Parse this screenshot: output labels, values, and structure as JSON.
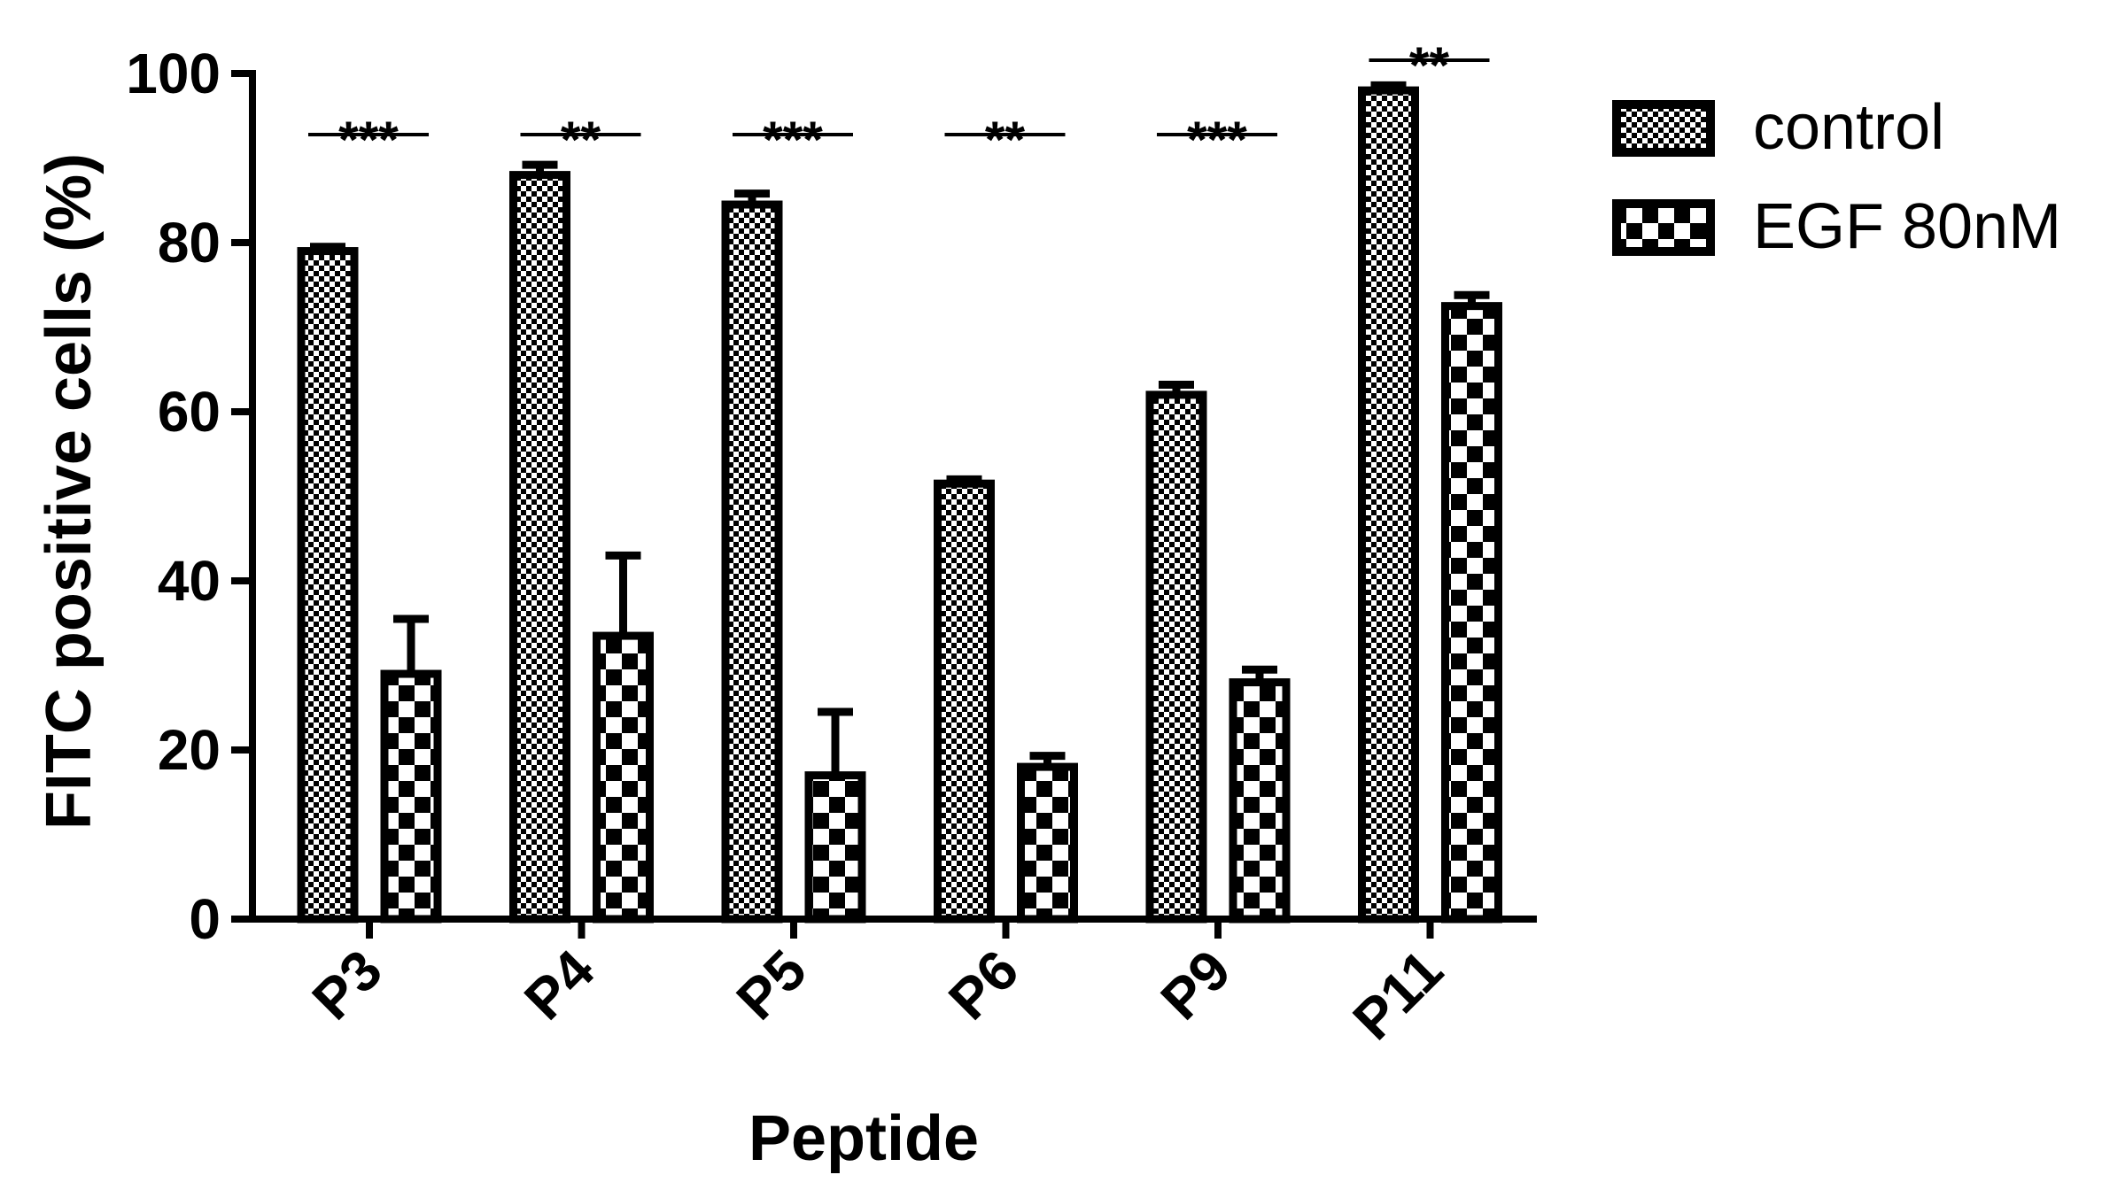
{
  "chart_data": {
    "type": "bar",
    "xlabel": "Peptide",
    "ylabel": "FITC positive cells (%)",
    "ylim": [
      0,
      100
    ],
    "yticks": [
      0,
      20,
      40,
      60,
      80,
      100
    ],
    "categories": [
      "P3",
      "P4",
      "P5",
      "P6",
      "P9",
      "P11"
    ],
    "series": [
      {
        "name": "control",
        "pattern": "fine-checker",
        "values": [
          79,
          88,
          84.5,
          51.5,
          62,
          98
        ],
        "error": [
          0.5,
          1.2,
          1.3,
          0.5,
          1.2,
          0.6
        ]
      },
      {
        "name": "EGF 80nM",
        "pattern": "coarse-checker",
        "values": [
          29,
          33.5,
          17,
          18,
          28,
          72.5
        ],
        "error": [
          6.5,
          9.5,
          7.5,
          1.3,
          1.5,
          1.3
        ]
      }
    ],
    "significance": [
      "***",
      "**",
      "***",
      "**",
      "***",
      "**"
    ],
    "legend_position": "top-right",
    "colors": {
      "ink": "#000000",
      "background": "#ffffff"
    }
  }
}
